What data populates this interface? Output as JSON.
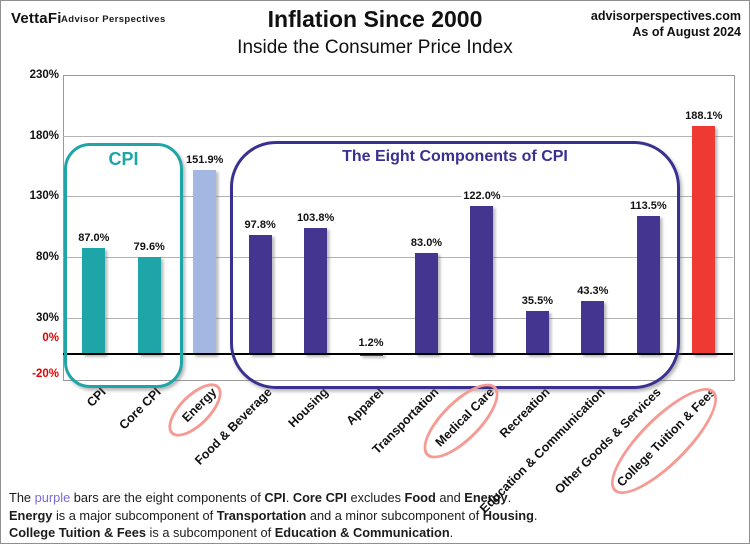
{
  "branding": {
    "logo": "VettaFi",
    "logo_sub": "Advisor Perspectives"
  },
  "header": {
    "title": "Inflation Since 2000",
    "subtitle": "Inside the Consumer Price Index",
    "source": "advisorperspectives.com",
    "as_of": "As of August 2024"
  },
  "chart_data": {
    "type": "bar",
    "title": "Inflation Since 2000",
    "subtitle": "Inside the Consumer Price Index",
    "ylim": [
      -20,
      230
    ],
    "grid": true,
    "yticks": [
      {
        "label": "230%",
        "value": 230,
        "red": false
      },
      {
        "label": "180%",
        "value": 180,
        "red": false
      },
      {
        "label": "130%",
        "value": 130,
        "red": false
      },
      {
        "label": "80%",
        "value": 80,
        "red": false
      },
      {
        "label": "30%",
        "value": 30,
        "red": false
      },
      {
        "label": "0%",
        "value": 0,
        "red": true
      },
      {
        "label": "-20%",
        "value": -20,
        "red": true
      }
    ],
    "categories": [
      "CPI",
      "Core CPI",
      "Energy",
      "Food & Beverage",
      "Housing",
      "Apparel",
      "Transportation",
      "Medical Care",
      "Recreation",
      "Education & Communication",
      "Other Goods & Services",
      "College Tuition & Fees"
    ],
    "values": [
      87.0,
      79.6,
      151.9,
      97.8,
      103.8,
      1.2,
      83.0,
      122.0,
      35.5,
      43.3,
      113.5,
      188.1
    ],
    "value_labels": [
      "87.0%",
      "79.6%",
      "151.9%",
      "97.8%",
      "103.8%",
      "1.2%",
      "83.0%",
      "122.0%",
      "35.5%",
      "43.3%",
      "113.5%",
      "188.1%"
    ],
    "bar_roles": [
      "cpi",
      "cpi",
      "energy",
      "component",
      "component",
      "component",
      "component",
      "component",
      "component",
      "component",
      "component",
      "highlight"
    ],
    "palette": {
      "cpi": "#1ea5a8",
      "energy": "#a2b8e2",
      "component": "#443690",
      "highlight": "#ee3a32"
    },
    "groups": [
      {
        "label": "CPI",
        "members": [
          "CPI",
          "Core CPI"
        ],
        "color": "#1ea5a8"
      },
      {
        "label": "The Eight Components of CPI",
        "members": [
          "Food & Beverage",
          "Housing",
          "Apparel",
          "Transportation",
          "Medical Care",
          "Recreation",
          "Education & Communication",
          "Other Goods & Services"
        ],
        "color": "#38318f"
      }
    ],
    "circled_categories": [
      "Energy",
      "Medical Care",
      "College Tuition & Fees"
    ],
    "circle_color": "#f59b93",
    "legend_position": "none"
  },
  "colors": {
    "grid": "#b3b3b3",
    "axis_red": "#e60000",
    "footer_purple": "#7c6bce"
  },
  "footer": {
    "lines": [
      [
        {
          "t": "The "
        },
        {
          "t": "purple",
          "c": "purple"
        },
        {
          "t": " bars are the eight components of "
        },
        {
          "t": "CPI",
          "b": true
        },
        {
          "t": ". "
        },
        {
          "t": "Core CPI",
          "b": true
        },
        {
          "t": " excludes "
        },
        {
          "t": "Food",
          "b": true
        },
        {
          "t": " and "
        },
        {
          "t": "Energy",
          "b": true
        },
        {
          "t": "."
        }
      ],
      [
        {
          "t": "Energy",
          "b": true
        },
        {
          "t": " is a major subcomponent of "
        },
        {
          "t": "Transportation",
          "b": true
        },
        {
          "t": " and a minor subcomponent of "
        },
        {
          "t": "Housing",
          "b": true
        },
        {
          "t": "."
        }
      ],
      [
        {
          "t": "College Tuition & Fees",
          "b": true
        },
        {
          "t": " is a subcomponent of "
        },
        {
          "t": "Education & Communication",
          "b": true
        },
        {
          "t": "."
        }
      ]
    ]
  }
}
